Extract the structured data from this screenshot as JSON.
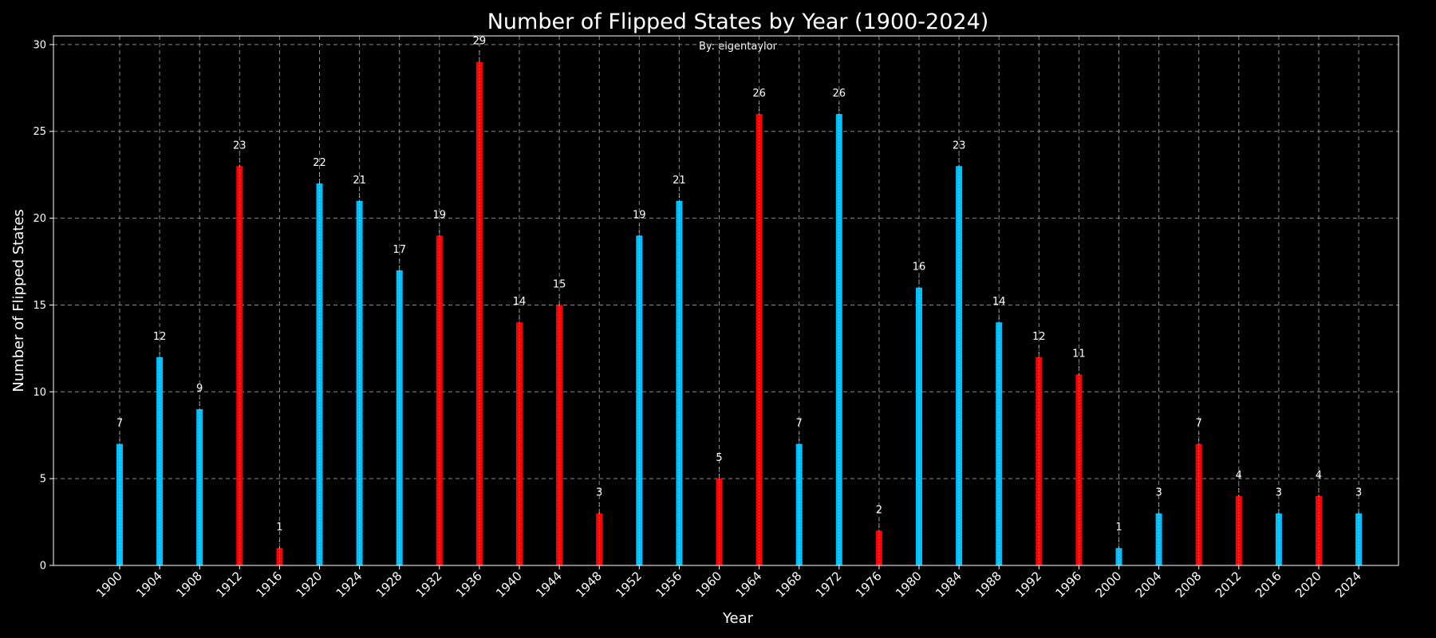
{
  "chart_data": {
    "type": "bar",
    "title": "Number of Flipped States by Year (1900-2024)",
    "subtitle": "By: eigentaylor",
    "xlabel": "Year",
    "ylabel": "Number of Flipped States",
    "ylim": [
      0,
      30.5
    ],
    "yticks": [
      0,
      5,
      10,
      15,
      20,
      25,
      30
    ],
    "grid": true,
    "colors": {
      "blue": "#00bfff",
      "red": "#ff0000",
      "background": "#000000"
    },
    "categories": [
      "1900",
      "1904",
      "1908",
      "1912",
      "1916",
      "1920",
      "1924",
      "1928",
      "1932",
      "1936",
      "1940",
      "1944",
      "1948",
      "1952",
      "1956",
      "1960",
      "1964",
      "1968",
      "1972",
      "1976",
      "1980",
      "1984",
      "1988",
      "1992",
      "1996",
      "2000",
      "2004",
      "2008",
      "2012",
      "2016",
      "2020",
      "2024"
    ],
    "values": [
      7,
      12,
      9,
      23,
      1,
      22,
      21,
      17,
      19,
      29,
      14,
      15,
      3,
      19,
      21,
      5,
      26,
      7,
      26,
      2,
      16,
      23,
      14,
      12,
      11,
      1,
      3,
      7,
      4,
      3,
      4,
      3
    ],
    "bar_colors": [
      "blue",
      "blue",
      "blue",
      "red",
      "red",
      "blue",
      "blue",
      "blue",
      "red",
      "red",
      "red",
      "red",
      "red",
      "blue",
      "blue",
      "red",
      "red",
      "blue",
      "blue",
      "red",
      "blue",
      "blue",
      "blue",
      "red",
      "red",
      "blue",
      "blue",
      "red",
      "red",
      "blue",
      "red",
      "blue"
    ]
  }
}
